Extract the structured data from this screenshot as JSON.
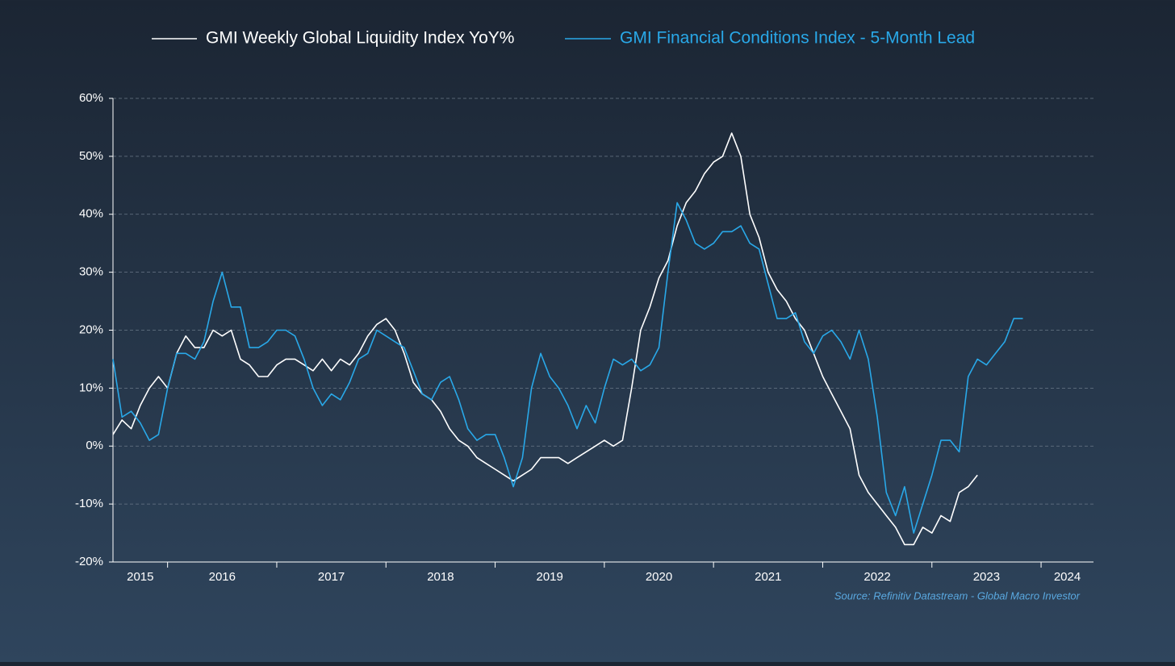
{
  "chart_data": {
    "type": "line",
    "source": "Source: Refinitiv Datastream - Global Macro Investor",
    "x": [
      2015.5,
      2015.583,
      2015.667,
      2015.75,
      2015.833,
      2015.917,
      2016,
      2016.083,
      2016.167,
      2016.25,
      2016.333,
      2016.417,
      2016.5,
      2016.583,
      2016.667,
      2016.75,
      2016.833,
      2016.917,
      2017,
      2017.083,
      2017.167,
      2017.25,
      2017.333,
      2017.417,
      2017.5,
      2017.583,
      2017.667,
      2017.75,
      2017.833,
      2017.917,
      2018,
      2018.083,
      2018.167,
      2018.25,
      2018.333,
      2018.417,
      2018.5,
      2018.583,
      2018.667,
      2018.75,
      2018.833,
      2018.917,
      2019,
      2019.083,
      2019.167,
      2019.25,
      2019.333,
      2019.417,
      2019.5,
      2019.583,
      2019.667,
      2019.75,
      2019.833,
      2019.917,
      2020,
      2020.083,
      2020.167,
      2020.25,
      2020.333,
      2020.417,
      2020.5,
      2020.583,
      2020.667,
      2020.75,
      2020.833,
      2020.917,
      2021,
      2021.083,
      2021.167,
      2021.25,
      2021.333,
      2021.417,
      2021.5,
      2021.583,
      2021.667,
      2021.75,
      2021.833,
      2021.917,
      2022,
      2022.083,
      2022.167,
      2022.25,
      2022.333,
      2022.417,
      2022.5,
      2022.583,
      2022.667,
      2022.75,
      2022.833,
      2022.917,
      2023,
      2023.083,
      2023.167,
      2023.25,
      2023.333,
      2023.417,
      2023.5,
      2023.583,
      2023.667,
      2023.75,
      2023.833
    ],
    "series": [
      {
        "name": "GMI Weekly Global Liquidity Index YoY%",
        "color": "#ffffff",
        "values": [
          2,
          4.5,
          3,
          7,
          10,
          12,
          10,
          16,
          19,
          17,
          17,
          20,
          19,
          20,
          15,
          14,
          12,
          12,
          14,
          15,
          15,
          14,
          13,
          15,
          13,
          15,
          14,
          16,
          19,
          21,
          22,
          20,
          16,
          11,
          9,
          8,
          6,
          3,
          1,
          0,
          -2,
          -3,
          -4,
          -5,
          -6,
          -5,
          -4,
          -2,
          -2,
          -2,
          -3,
          -2,
          -1,
          0,
          1,
          0,
          1,
          10,
          20,
          24,
          29,
          32,
          38,
          42,
          44,
          47,
          49,
          50,
          54,
          50,
          40,
          36,
          30,
          27,
          25,
          22,
          20,
          16,
          12,
          9,
          6,
          3,
          -5,
          -8,
          -10,
          -12,
          -14,
          -17,
          -17,
          -14,
          -15,
          -12,
          -13,
          -8,
          -7,
          -5,
          null,
          null,
          null,
          null,
          null
        ]
      },
      {
        "name": "GMI Financial Conditions Index - 5-Month Lead",
        "color": "#29a8e8",
        "values": [
          15,
          5,
          6,
          4,
          1,
          2,
          10,
          16,
          16,
          15,
          18,
          25,
          30,
          24,
          24,
          17,
          17,
          18,
          20,
          20,
          19,
          15,
          10,
          7,
          9,
          8,
          11,
          15,
          16,
          20,
          19,
          18,
          17,
          13,
          9,
          8,
          11,
          12,
          8,
          3,
          1,
          2,
          2,
          -2,
          -7,
          -2,
          10,
          16,
          12,
          10,
          7,
          3,
          7,
          4,
          10,
          15,
          14,
          15,
          13,
          14,
          17,
          30,
          42,
          39,
          35,
          34,
          35,
          37,
          37,
          38,
          35,
          34,
          28,
          22,
          22,
          23,
          18,
          16,
          19,
          20,
          18,
          15,
          20,
          15,
          5,
          -8,
          -12,
          -7,
          -15,
          -10,
          -5,
          1,
          1,
          -1,
          12,
          15,
          14,
          16,
          18,
          22,
          22
        ]
      }
    ],
    "xlim": [
      2015.5,
      2024.48
    ],
    "xtick_marks": [
      2016,
      2017,
      2018,
      2019,
      2020,
      2021,
      2022,
      2023,
      2024
    ],
    "xticks": [
      {
        "value": 2015.75,
        "label": "2015"
      },
      {
        "value": 2016.5,
        "label": "2016"
      },
      {
        "value": 2017.5,
        "label": "2017"
      },
      {
        "value": 2018.5,
        "label": "2018"
      },
      {
        "value": 2019.5,
        "label": "2019"
      },
      {
        "value": 2020.5,
        "label": "2020"
      },
      {
        "value": 2021.5,
        "label": "2021"
      },
      {
        "value": 2022.5,
        "label": "2022"
      },
      {
        "value": 2023.5,
        "label": "2023"
      },
      {
        "value": 2024.24,
        "label": "2024"
      }
    ],
    "ylim": [
      -20,
      60
    ],
    "yticks": [
      {
        "value": -20,
        "label": "-20%"
      },
      {
        "value": -10,
        "label": "-10%"
      },
      {
        "value": 0,
        "label": "0%"
      },
      {
        "value": 10,
        "label": "10%"
      },
      {
        "value": 20,
        "label": "20%"
      },
      {
        "value": 30,
        "label": "30%"
      },
      {
        "value": 40,
        "label": "40%"
      },
      {
        "value": 50,
        "label": "50%"
      },
      {
        "value": 60,
        "label": "60%"
      }
    ],
    "grid": true
  }
}
